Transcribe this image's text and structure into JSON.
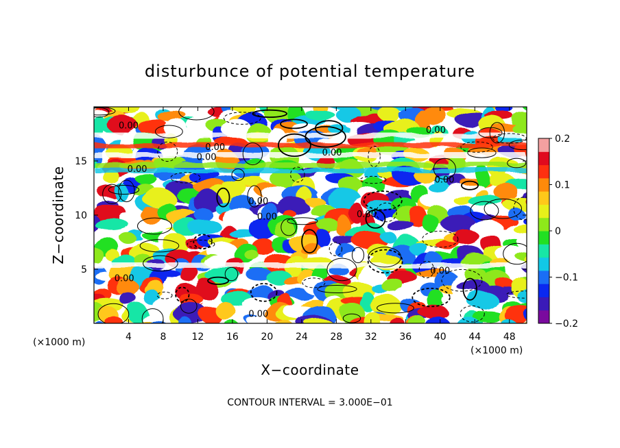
{
  "chart_data": {
    "type": "heatmap",
    "title": "disturbunce of potential temperature",
    "xlabel": "X−coordinate",
    "ylabel": "Z−coordinate",
    "x_unit": "(×1000 m)",
    "x_unit_right": "(×1000 m)",
    "xlim": [
      0,
      50
    ],
    "ylim": [
      0,
      20
    ],
    "xticks": [
      4,
      8,
      12,
      16,
      20,
      24,
      28,
      32,
      36,
      40,
      44,
      48
    ],
    "xtick_labels": [
      "4",
      "8",
      "12",
      "16",
      "20",
      "24",
      "28",
      "32",
      "36",
      "40",
      "44",
      "48"
    ],
    "yticks": [
      5,
      10,
      15
    ],
    "ytick_labels": [
      "5",
      "10",
      "15"
    ],
    "colorbar": {
      "min": -0.2,
      "max": 0.2,
      "ticks": [
        0.2,
        0.1,
        0,
        -0.1,
        -0.2
      ],
      "tick_labels": [
        "0.2",
        "0.1",
        "0",
        "−0.1",
        "−0.2"
      ],
      "colors": [
        "#7a0a9e",
        "#3a1ab8",
        "#0a28f0",
        "#1a6ef5",
        "#12c8e6",
        "#18e6a6",
        "#22e022",
        "#8ee81a",
        "#e8f01a",
        "#ffc81a",
        "#ff8a0a",
        "#ff3010",
        "#e00a1e",
        "#f4a0a0"
      ]
    },
    "contour_labels": [
      {
        "text": "0.00",
        "x": 4,
        "z": 18
      },
      {
        "text": "0.00",
        "x": 14,
        "z": 16
      },
      {
        "text": "0.00",
        "x": 13,
        "z": 15.1
      },
      {
        "text": "0.00",
        "x": 5,
        "z": 14
      },
      {
        "text": "0.00",
        "x": 27.5,
        "z": 15.5
      },
      {
        "text": "0.00",
        "x": 39.5,
        "z": 17.6
      },
      {
        "text": "0.00",
        "x": 40.5,
        "z": 13
      },
      {
        "text": "0.00",
        "x": 19,
        "z": 11
      },
      {
        "text": "0.00",
        "x": 20,
        "z": 9.6
      },
      {
        "text": "0.00",
        "x": 31.5,
        "z": 9.8
      },
      {
        "text": "0.00",
        "x": 40,
        "z": 4.6
      },
      {
        "text": "0.00",
        "x": 3.5,
        "z": 3.9
      },
      {
        "text": "0.00",
        "x": 19,
        "z": 0.6
      }
    ],
    "contour_interval_label": "CONTOUR INTERVAL = 3.000E−01"
  }
}
